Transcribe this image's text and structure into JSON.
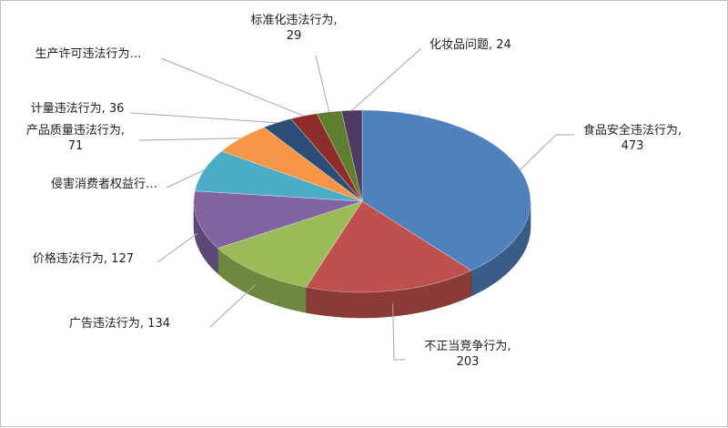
{
  "chart_data": {
    "type": "pie",
    "style": "3d-pie",
    "title": "",
    "slices": [
      {
        "label": "食品安全违法行为",
        "value": 473,
        "value_text": "473",
        "color": "#4f81bd",
        "text_lines": [
          "食品安全违法行为,",
          "473"
        ]
      },
      {
        "label": "不正当竞争行为",
        "value": 203,
        "value_text": "203",
        "color": "#c0504d",
        "text_lines": [
          "不正当竞争行为,",
          "203"
        ]
      },
      {
        "label": "广告违法行为",
        "value": 134,
        "value_text": "134",
        "color": "#9bbb59",
        "text_lines": [
          "广告违法行为, 134"
        ]
      },
      {
        "label": "价格违法行为",
        "value": 127,
        "value_text": "127",
        "color": "#8064a2",
        "text_lines": [
          "价格违法行为, 127"
        ]
      },
      {
        "label": "侵害消费者权益行…",
        "value": 91,
        "value_text": "",
        "color": "#4bacc6",
        "text_lines": [
          "侵害消费者权益行…"
        ]
      },
      {
        "label": "产品质量违法行为",
        "value": 71,
        "value_text": "71",
        "color": "#f79646",
        "text_lines": [
          "产品质量违法行为,",
          "71"
        ]
      },
      {
        "label": "计量违法行为",
        "value": 36,
        "value_text": "36",
        "color": "#2c4d75",
        "text_lines": [
          "计量违法行为, 36"
        ]
      },
      {
        "label": "生产许可违法行为…",
        "value": 32,
        "value_text": "",
        "color": "#8e2c2a",
        "text_lines": [
          "生产许可违法行为…"
        ]
      },
      {
        "label": "标准化违法行为",
        "value": 29,
        "value_text": "29",
        "color": "#5f7e2f",
        "text_lines": [
          "标准化违法行为,",
          "29"
        ]
      },
      {
        "label": "化妆品问题",
        "value": 24,
        "value_text": "24",
        "color": "#4d3b62",
        "text_lines": [
          "化妆品问题, 24"
        ]
      }
    ],
    "legend": "none",
    "start": "12 o'clock",
    "direction": "clockwise"
  }
}
